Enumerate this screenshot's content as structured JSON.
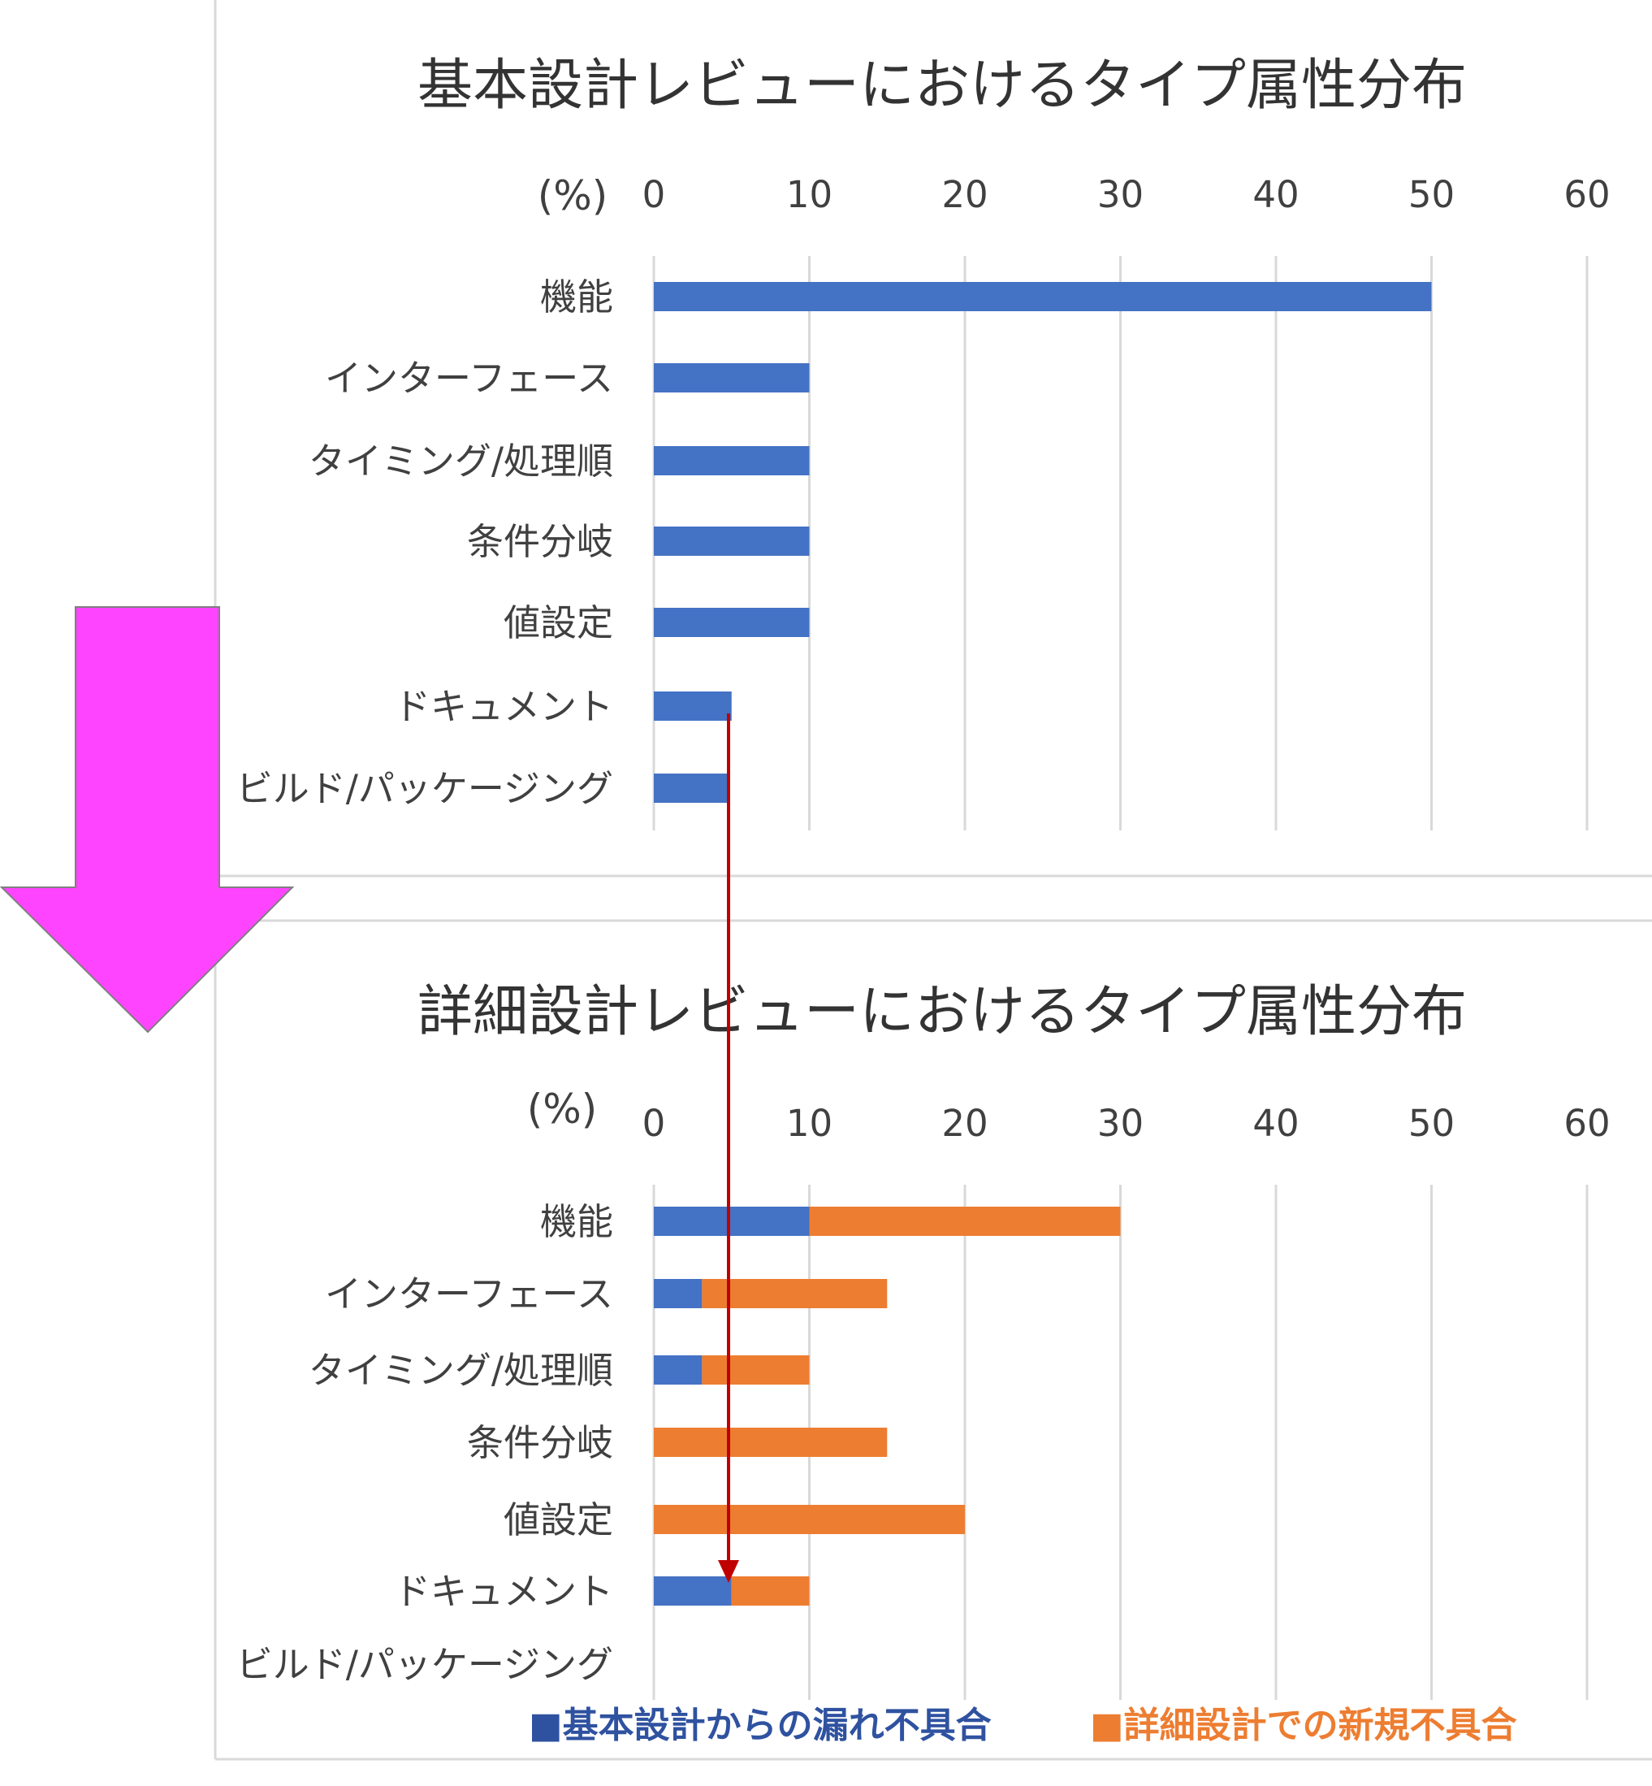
{
  "chart_data": [
    {
      "type": "bar",
      "orientation": "horizontal",
      "stacked": false,
      "title": "基本設計レビューにおけるタイプ属性分布",
      "unit_label": "(%)",
      "xlim": [
        0,
        60
      ],
      "ticks": [
        "0",
        "10",
        "20",
        "30",
        "40",
        "50",
        "60"
      ],
      "grid": true,
      "categories": [
        "機能",
        "インターフェース",
        "タイミング/処理順",
        "条件分岐",
        "値設定",
        "ドキュメント",
        "ビルド/パッケージング"
      ],
      "series": [
        {
          "values": [
            50,
            10,
            10,
            10,
            10,
            5,
            4.7
          ],
          "color": "#4472C4"
        }
      ]
    },
    {
      "type": "bar",
      "orientation": "horizontal",
      "stacked": true,
      "title": "詳細設計レビューにおけるタイプ属性分布",
      "unit_label": "(%)",
      "xlim": [
        0,
        60
      ],
      "ticks": [
        "0",
        "10",
        "20",
        "30",
        "40",
        "50",
        "60"
      ],
      "grid": true,
      "categories": [
        "機能",
        "インターフェース",
        "タイミング/処理順",
        "条件分岐",
        "値設定",
        "ドキュメント",
        "ビルド/パッケージング"
      ],
      "series": [
        {
          "name": "基本設計からの漏れ不具合",
          "values": [
            10,
            3.1,
            3.1,
            0,
            0,
            5,
            0
          ],
          "color": "#4472C4"
        },
        {
          "name": "詳細設計での新規不具合",
          "values": [
            20,
            11.9,
            6.9,
            15,
            20,
            5,
            0
          ],
          "color": "#ED7D31"
        }
      ],
      "legend": {
        "position": "bottom"
      }
    }
  ],
  "legend": {
    "items": [
      {
        "symbol": "■",
        "label": "基本設計からの漏れ不具合",
        "color": "#2F52A0"
      },
      {
        "symbol": "■",
        "label": "詳細設計での新規不具合",
        "color": "#ED7D31"
      }
    ]
  },
  "colors": {
    "flow_arrow": "#FF44FF",
    "trace_arrow": "#C00000",
    "gridline": "#D9D9D9",
    "panel_border": "#D9D9D9"
  }
}
